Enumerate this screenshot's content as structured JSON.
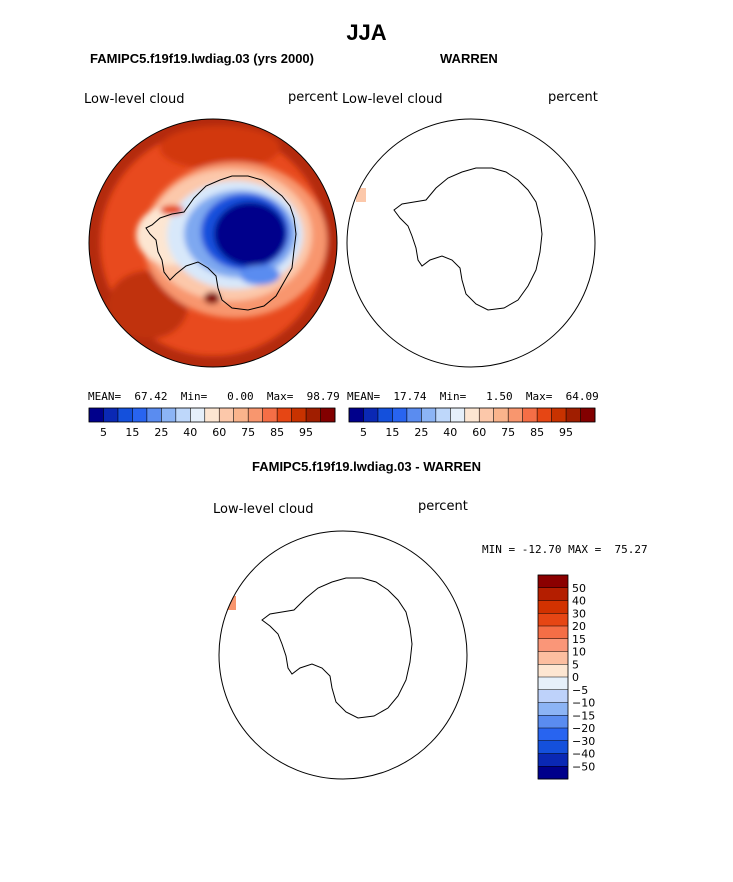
{
  "page": {
    "season": "JJA",
    "colors": {
      "land_outline": "#000000",
      "background": "#ffffff"
    }
  },
  "chart_data": [
    {
      "type": "heatmap",
      "projection": "south-polar-stereographic",
      "title": "FAMIPC5.f19f19.lwdiag.03 (yrs 2000)",
      "variable_label": "Low-level cloud",
      "units_label": "percent",
      "stats": {
        "mean_label": "MEAN=",
        "mean": "67.42",
        "min_label": "Min=",
        "min": "0.00",
        "max_label": "Max=",
        "max": "98.79"
      },
      "colorbar": {
        "orientation": "horizontal",
        "tick_labels": [
          "5",
          "15",
          "25",
          "40",
          "60",
          "75",
          "85",
          "95"
        ],
        "colors": [
          "#00008b",
          "#0a28b4",
          "#1450dc",
          "#2864f0",
          "#5a8cf0",
          "#8cb4f5",
          "#bed7fa",
          "#e6f0fa",
          "#fde6d2",
          "#fcc8aa",
          "#fab48c",
          "#f8966e",
          "#f56e46",
          "#e64614",
          "#c83200",
          "#a01e00",
          "#820000"
        ]
      },
      "field_summary": {
        "interior_values_percent": "0-15",
        "coastal_ring_percent": "40-75",
        "ocean_values_percent": "75-98"
      }
    },
    {
      "type": "heatmap",
      "projection": "south-polar-stereographic",
      "title": "WARREN",
      "variable_label": "Low-level cloud",
      "units_label": "percent",
      "stats": {
        "mean_label": "MEAN=",
        "mean": "17.74",
        "min_label": "Min=",
        "min": "1.50",
        "max_label": "Max=",
        "max": "64.09"
      },
      "colorbar": {
        "orientation": "horizontal",
        "tick_labels": [
          "5",
          "15",
          "25",
          "40",
          "60",
          "75",
          "85",
          "95"
        ],
        "colors": [
          "#00008b",
          "#0a28b4",
          "#1450dc",
          "#2864f0",
          "#5a8cf0",
          "#8cb4f5",
          "#bed7fa",
          "#e6f0fa",
          "#fde6d2",
          "#fcc8aa",
          "#fab48c",
          "#f8966e",
          "#f56e46",
          "#e64614",
          "#c83200",
          "#a01e00",
          "#820000"
        ]
      },
      "field_summary": {
        "note": "mostly blank; small patch near Antarctic Peninsula ~60"
      }
    },
    {
      "type": "heatmap",
      "projection": "south-polar-stereographic",
      "title": "FAMIPC5.f19f19.lwdiag.03 - WARREN",
      "variable_label": "Low-level cloud",
      "units_label": "percent",
      "stats": {
        "min_label": "MIN =",
        "min": "-12.70",
        "max_label": "MAX =",
        "max": "75.27"
      },
      "colorbar": {
        "orientation": "vertical",
        "tick_labels": [
          "50",
          "40",
          "30",
          "20",
          "15",
          "10",
          "5",
          "0",
          "−5",
          "−10",
          "−15",
          "−20",
          "−30",
          "−40",
          "−50"
        ],
        "colors": [
          "#8b0000",
          "#b41e00",
          "#d23200",
          "#e64614",
          "#f56e46",
          "#fa9678",
          "#fcbea0",
          "#fde6d2",
          "#e6f0fa",
          "#bed2fa",
          "#8cb4f5",
          "#5a8cf0",
          "#2864f0",
          "#1450dc",
          "#0a28b4",
          "#00008b"
        ]
      },
      "field_summary": {
        "note": "mostly blank; small patch near Antarctic Peninsula ~15"
      }
    }
  ]
}
